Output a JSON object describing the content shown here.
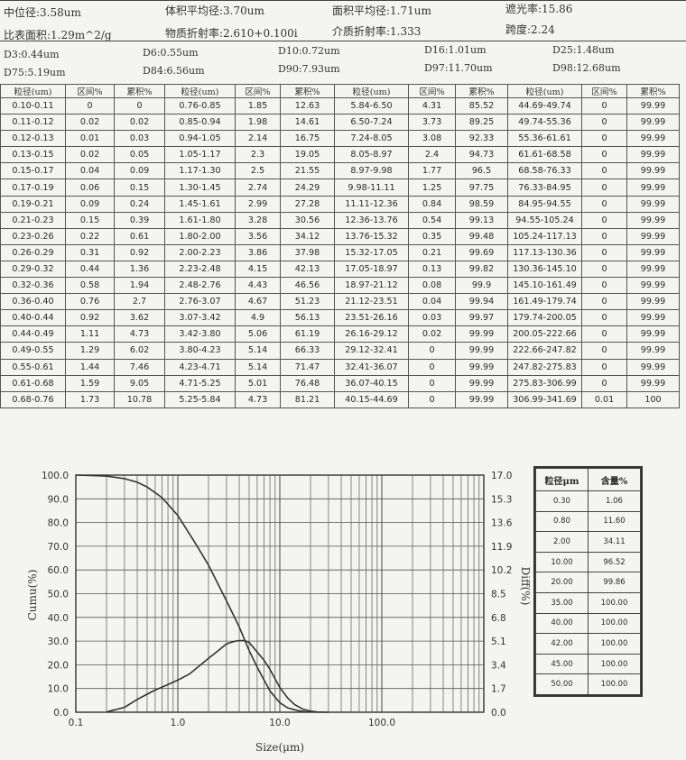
{
  "summary": {
    "row1": [
      {
        "label": "中位径:3.58um"
      },
      {
        "label": "体积平均径:3.70um"
      },
      {
        "label": "面积平均径:1.71um"
      },
      {
        "label": "遮光率:15.86"
      }
    ],
    "row2": [
      {
        "label": "比表面积:1.29m^2/g"
      },
      {
        "label": "物质折射率:2.610+0.100i"
      },
      {
        "label": "介质折射率:1.333"
      },
      {
        "label": "跨度:2.24"
      }
    ],
    "row3": [
      {
        "label": "D3:0.44um"
      },
      {
        "label": "D6:0.55um"
      },
      {
        "label": "D10:0.72um"
      },
      {
        "label": "D16:1.01um"
      },
      {
        "label": "D25:1.48um"
      }
    ],
    "row4": [
      {
        "label": "D75:5.19um"
      },
      {
        "label": "D84:6.56um"
      },
      {
        "label": "D90:7.93um"
      },
      {
        "label": "D97:11.70um"
      },
      {
        "label": "D98:12.68um"
      }
    ]
  },
  "table": {
    "headers": [
      "粒径(um)",
      "区间%",
      "累积%",
      "粒径(um)",
      "区间%",
      "累积%",
      "粒径(um)",
      "区间%",
      "累积%",
      "粒径(um)",
      "区间%",
      "累积%"
    ],
    "rows": [
      [
        "0.10-0.11",
        "0",
        "0",
        "0.76-0.85",
        "1.85",
        "12.63",
        "5.84-6.50",
        "4.31",
        "85.52",
        "44.69-49.74",
        "0",
        "99.99"
      ],
      [
        "0.11-0.12",
        "0.02",
        "0.02",
        "0.85-0.94",
        "1.98",
        "14.61",
        "6.50-7.24",
        "3.73",
        "89.25",
        "49.74-55.36",
        "0",
        "99.99"
      ],
      [
        "0.12-0.13",
        "0.01",
        "0.03",
        "0.94-1.05",
        "2.14",
        "16.75",
        "7.24-8.05",
        "3.08",
        "92.33",
        "55.36-61.61",
        "0",
        "99.99"
      ],
      [
        "0.13-0.15",
        "0.02",
        "0.05",
        "1.05-1.17",
        "2.3",
        "19.05",
        "8.05-8.97",
        "2.4",
        "94.73",
        "61.61-68.58",
        "0",
        "99.99"
      ],
      [
        "0.15-0.17",
        "0.04",
        "0.09",
        "1.17-1.30",
        "2.5",
        "21.55",
        "8.97-9.98",
        "1.77",
        "96.5",
        "68.58-76.33",
        "0",
        "99.99"
      ],
      [
        "0.17-0.19",
        "0.06",
        "0.15",
        "1.30-1.45",
        "2.74",
        "24.29",
        "9.98-11.11",
        "1.25",
        "97.75",
        "76.33-84.95",
        "0",
        "99.99"
      ],
      [
        "0.19-0.21",
        "0.09",
        "0.24",
        "1.45-1.61",
        "2.99",
        "27.28",
        "11.11-12.36",
        "0.84",
        "98.59",
        "84.95-94.55",
        "0",
        "99.99"
      ],
      [
        "0.21-0.23",
        "0.15",
        "0.39",
        "1.61-1.80",
        "3.28",
        "30.56",
        "12.36-13.76",
        "0.54",
        "99.13",
        "94.55-105.24",
        "0",
        "99.99"
      ],
      [
        "0.23-0.26",
        "0.22",
        "0.61",
        "1.80-2.00",
        "3.56",
        "34.12",
        "13.76-15.32",
        "0.35",
        "99.48",
        "105.24-117.13",
        "0",
        "99.99"
      ],
      [
        "0.26-0.29",
        "0.31",
        "0.92",
        "2.00-2.23",
        "3.86",
        "37.98",
        "15.32-17.05",
        "0.21",
        "99.69",
        "117.13-130.36",
        "0",
        "99.99"
      ],
      [
        "0.29-0.32",
        "0.44",
        "1.36",
        "2.23-2.48",
        "4.15",
        "42.13",
        "17.05-18.97",
        "0.13",
        "99.82",
        "130.36-145.10",
        "0",
        "99.99"
      ],
      [
        "0.32-0.36",
        "0.58",
        "1.94",
        "2.48-2.76",
        "4.43",
        "46.56",
        "18.97-21.12",
        "0.08",
        "99.9",
        "145.10-161.49",
        "0",
        "99.99"
      ],
      [
        "0.36-0.40",
        "0.76",
        "2.7",
        "2.76-3.07",
        "4.67",
        "51.23",
        "21.12-23.51",
        "0.04",
        "99.94",
        "161.49-179.74",
        "0",
        "99.99"
      ],
      [
        "0.40-0.44",
        "0.92",
        "3.62",
        "3.07-3.42",
        "4.9",
        "56.13",
        "23.51-26.16",
        "0.03",
        "99.97",
        "179.74-200.05",
        "0",
        "99.99"
      ],
      [
        "0.44-0.49",
        "1.11",
        "4.73",
        "3.42-3.80",
        "5.06",
        "61.19",
        "26.16-29.12",
        "0.02",
        "99.99",
        "200.05-222.66",
        "0",
        "99.99"
      ],
      [
        "0.49-0.55",
        "1.29",
        "6.02",
        "3.80-4.23",
        "5.14",
        "66.33",
        "29.12-32.41",
        "0",
        "99.99",
        "222.66-247.82",
        "0",
        "99.99"
      ],
      [
        "0.55-0.61",
        "1.44",
        "7.46",
        "4.23-4.71",
        "5.14",
        "71.47",
        "32.41-36.07",
        "0",
        "99.99",
        "247.82-275.83",
        "0",
        "99.99"
      ],
      [
        "0.61-0.68",
        "1.59",
        "9.05",
        "4.71-5.25",
        "5.01",
        "76.48",
        "36.07-40.15",
        "0",
        "99.99",
        "275.83-306.99",
        "0",
        "99.99"
      ],
      [
        "0.68-0.76",
        "1.73",
        "10.78",
        "5.25-5.84",
        "4.73",
        "81.21",
        "40.15-44.69",
        "0",
        "99.99",
        "306.99-341.69",
        "0.01",
        "100"
      ]
    ]
  },
  "chart_data": {
    "type": "line",
    "xlabel": "Size(μm)",
    "ylabel_left": "Cumu(%)",
    "ylabel_right": "Diff(%)",
    "xscale": "log",
    "xlim": [
      0.1,
      1000
    ],
    "x_tick_labels": [
      "0.1",
      "1.0",
      "10.0",
      "100.0"
    ],
    "ylim_left": [
      0,
      100
    ],
    "y_left_tick_labels": [
      "0.0",
      "10.0",
      "20.0",
      "30.0",
      "40.0",
      "50.0",
      "60.0",
      "70.0",
      "80.0",
      "90.0",
      "100.0"
    ],
    "ylim_right": [
      0,
      17
    ],
    "y_right_tick_labels": [
      "0.0",
      "1.7",
      "3.4",
      "5.1",
      "6.8",
      "8.5",
      "10.2",
      "11.9",
      "13.6",
      "15.3",
      "17.0"
    ],
    "grid": true,
    "series": [
      {
        "name": "Cumu",
        "axis": "left",
        "x": [
          0.1,
          0.2,
          0.3,
          0.4,
          0.5,
          0.7,
          1.0,
          1.5,
          2.0,
          3.0,
          4.0,
          5.0,
          6.0,
          8.0,
          10.0,
          12.0,
          15.0,
          18.0,
          20.0,
          30.0
        ],
        "y": [
          100,
          99.6,
          98.5,
          97.0,
          95.0,
          90.5,
          83.0,
          71.0,
          62.0,
          47.0,
          36.0,
          26.0,
          19.0,
          9.0,
          4.0,
          1.8,
          0.7,
          0.2,
          0.1,
          0.0
        ]
      },
      {
        "name": "Diff",
        "axis": "right",
        "x": [
          0.2,
          0.3,
          0.4,
          0.5,
          0.6,
          0.8,
          1.0,
          1.3,
          1.6,
          2.0,
          2.5,
          3.0,
          3.5,
          4.0,
          4.5,
          5.0,
          6.0,
          7.0,
          8.0,
          10.0,
          12.0,
          14.0,
          17.0,
          20.0,
          23.0
        ],
        "y": [
          0.02,
          0.35,
          0.92,
          1.29,
          1.59,
          1.98,
          2.3,
          2.74,
          3.28,
          3.86,
          4.43,
          4.9,
          5.06,
          5.14,
          5.14,
          5.01,
          4.31,
          3.73,
          3.08,
          1.77,
          1.0,
          0.54,
          0.21,
          0.08,
          0.03
        ]
      }
    ]
  },
  "side_table": {
    "headers": [
      "粒径μm",
      "含量%"
    ],
    "rows": [
      [
        "0.30",
        "1.06"
      ],
      [
        "0.80",
        "11.60"
      ],
      [
        "2.00",
        "34.11"
      ],
      [
        "10.00",
        "96.52"
      ],
      [
        "20.00",
        "99.86"
      ],
      [
        "35.00",
        "100.00"
      ],
      [
        "40.00",
        "100.00"
      ],
      [
        "42.00",
        "100.00"
      ],
      [
        "45.00",
        "100.00"
      ],
      [
        "50.00",
        "100.00"
      ]
    ]
  }
}
